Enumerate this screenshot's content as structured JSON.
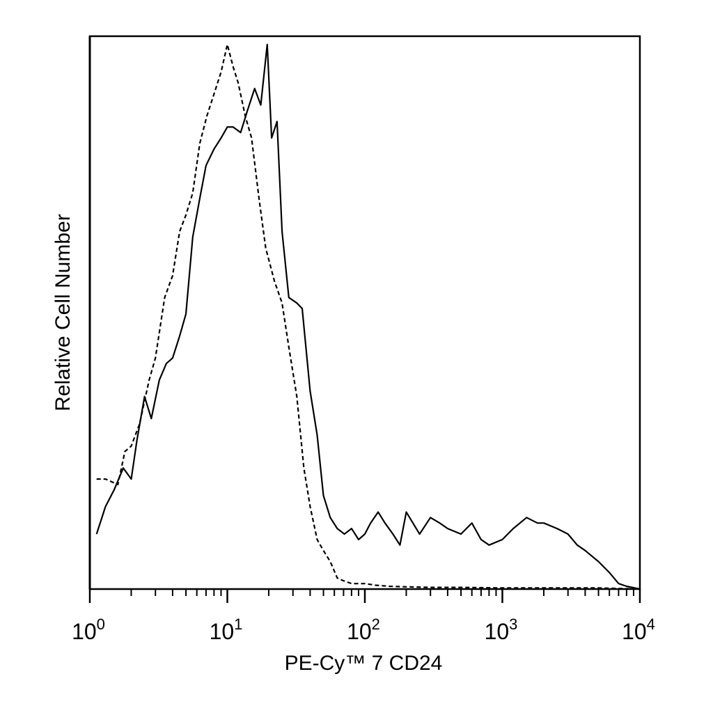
{
  "chart_data": {
    "type": "line",
    "title": "",
    "xlabel": "PE-Cy™ 7 CD24",
    "ylabel": "Relative Cell Number",
    "x_scale": "log",
    "xlim": [
      1,
      10000
    ],
    "ylim": [
      0,
      100
    ],
    "grid": false,
    "legend": "none",
    "x_ticks": [
      {
        "value": 1,
        "base": "10",
        "exp": "0"
      },
      {
        "value": 10,
        "base": "10",
        "exp": "1"
      },
      {
        "value": 100,
        "base": "10",
        "exp": "2"
      },
      {
        "value": 1000,
        "base": "10",
        "exp": "3"
      },
      {
        "value": 10000,
        "base": "10",
        "exp": "4"
      }
    ],
    "series": [
      {
        "style": "solid",
        "color": "#000000",
        "x": [
          1.12,
          1.3,
          1.5,
          1.75,
          2.0,
          2.2,
          2.5,
          2.8,
          3.2,
          3.6,
          4.0,
          4.5,
          5.0,
          5.6,
          6.3,
          7.0,
          8.0,
          9.0,
          10.0,
          11.0,
          12.5,
          14.0,
          15.8,
          17.5,
          19.5,
          21.0,
          23.0,
          25.0,
          28.0,
          32.0,
          35.0,
          40.0,
          45.0,
          50.0,
          56.0,
          63.0,
          71.0,
          80.0,
          90.0,
          100,
          110,
          125,
          140,
          160,
          180,
          200,
          250,
          300,
          350,
          400,
          500,
          600,
          700,
          800,
          1000,
          1200,
          1500,
          1800,
          2000,
          2500,
          3000,
          3500,
          4000,
          5000,
          6000,
          7000,
          8000,
          10000
        ],
        "y": [
          10,
          15,
          18,
          22,
          20,
          27,
          35,
          31,
          38,
          41,
          42,
          46,
          50,
          64,
          71,
          77,
          80,
          82,
          84,
          84,
          83,
          87,
          91,
          88,
          99,
          82,
          85,
          65,
          53,
          52,
          51,
          36,
          28,
          17,
          13,
          11,
          10,
          11,
          9,
          10,
          12,
          14,
          12,
          10,
          8,
          14,
          10,
          13,
          12,
          11,
          10,
          12,
          9,
          8,
          9,
          11,
          13,
          12,
          12,
          11,
          10,
          8,
          7,
          5,
          3,
          1,
          0.5,
          0
        ]
      },
      {
        "style": "dashed",
        "color": "#000000",
        "x": [
          1.12,
          1.3,
          1.6,
          1.8,
          2.0,
          2.3,
          2.7,
          3.0,
          3.5,
          4.0,
          4.5,
          5.0,
          5.6,
          6.3,
          7.1,
          8.0,
          9.0,
          10.0,
          11.0,
          12.0,
          13.5,
          15.0,
          17.0,
          19.0,
          22.0,
          25.0,
          28.0,
          32.0,
          36.0,
          40.0,
          45.0,
          50.0,
          56.0,
          63.0,
          70.0,
          80.0,
          100,
          120,
          150,
          200,
          300,
          500,
          1000,
          2000,
          5000,
          10000
        ],
        "y": [
          20,
          20,
          19,
          25,
          26,
          30,
          38,
          42,
          53,
          57,
          65,
          68,
          72,
          81,
          86,
          90,
          94,
          99,
          95,
          92,
          86,
          82,
          71,
          62,
          56,
          52,
          44,
          35,
          22,
          15,
          9,
          7,
          5,
          2,
          1.5,
          1,
          1,
          0.7,
          0.5,
          0.4,
          0.3,
          0.3,
          0.2,
          0.2,
          0.2,
          0
        ]
      }
    ]
  }
}
